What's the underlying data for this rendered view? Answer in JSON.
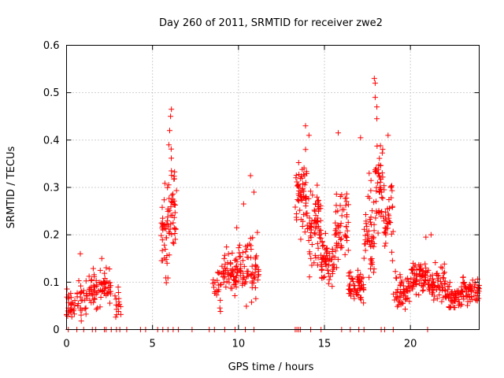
{
  "chart_data": {
    "type": "scatter",
    "title": "Day 260 of 2011, SRMTID for receiver zwe2",
    "xlabel": "GPS time / hours",
    "ylabel": "SRMTID / TECUs",
    "xlim": [
      0,
      24
    ],
    "ylim": [
      0,
      0.6
    ],
    "xticks": [
      0,
      5,
      10,
      15,
      20
    ],
    "yticks": [
      0,
      0.1,
      0.2,
      0.3,
      0.4,
      0.5,
      0.6
    ],
    "xtick_labels": [
      "0",
      "5",
      "10",
      "15",
      "20"
    ],
    "ytick_labels": [
      "0",
      "0.1",
      "0.2",
      "0.3",
      "0.4",
      "0.5",
      "0.6"
    ],
    "grid": true,
    "marker": "+",
    "marker_color": "#ff0000",
    "clusters": [
      {
        "x_range": [
          0.0,
          0.5
        ],
        "y_center": 0.05,
        "y_spread": 0.03,
        "count": 30
      },
      {
        "x_range": [
          0.6,
          1.2
        ],
        "y_center": 0.06,
        "y_spread": 0.04,
        "count": 30
      },
      {
        "x_range": [
          1.3,
          2.0
        ],
        "y_center": 0.08,
        "y_spread": 0.035,
        "count": 40
      },
      {
        "x_range": [
          2.0,
          2.6
        ],
        "y_center": 0.09,
        "y_spread": 0.03,
        "count": 35
      },
      {
        "x_range": [
          2.8,
          3.2
        ],
        "y_center": 0.05,
        "y_spread": 0.03,
        "count": 15
      },
      {
        "x_range": [
          5.5,
          6.0
        ],
        "y_center": 0.2,
        "y_spread": 0.09,
        "count": 45
      },
      {
        "x_range": [
          6.0,
          6.4
        ],
        "y_center": 0.28,
        "y_spread": 0.1,
        "count": 35
      },
      {
        "x_range": [
          8.5,
          9.0
        ],
        "y_center": 0.09,
        "y_spread": 0.04,
        "count": 20
      },
      {
        "x_range": [
          9.0,
          10.0
        ],
        "y_center": 0.12,
        "y_spread": 0.04,
        "count": 60
      },
      {
        "x_range": [
          10.0,
          11.2
        ],
        "y_center": 0.13,
        "y_spread": 0.06,
        "count": 70
      },
      {
        "x_range": [
          13.3,
          14.0
        ],
        "y_center": 0.28,
        "y_spread": 0.07,
        "count": 60
      },
      {
        "x_range": [
          14.0,
          14.8
        ],
        "y_center": 0.22,
        "y_spread": 0.08,
        "count": 70
      },
      {
        "x_range": [
          14.8,
          15.6
        ],
        "y_center": 0.15,
        "y_spread": 0.05,
        "count": 60
      },
      {
        "x_range": [
          15.6,
          16.4
        ],
        "y_center": 0.22,
        "y_spread": 0.07,
        "count": 55
      },
      {
        "x_range": [
          16.4,
          17.3
        ],
        "y_center": 0.09,
        "y_spread": 0.03,
        "count": 60
      },
      {
        "x_range": [
          17.3,
          17.9
        ],
        "y_center": 0.2,
        "y_spread": 0.08,
        "count": 50
      },
      {
        "x_range": [
          17.9,
          18.4
        ],
        "y_center": 0.3,
        "y_spread": 0.09,
        "count": 45
      },
      {
        "x_range": [
          18.4,
          19.0
        ],
        "y_center": 0.22,
        "y_spread": 0.08,
        "count": 40
      },
      {
        "x_range": [
          19.0,
          20.0
        ],
        "y_center": 0.08,
        "y_spread": 0.03,
        "count": 55
      },
      {
        "x_range": [
          20.0,
          21.0
        ],
        "y_center": 0.11,
        "y_spread": 0.03,
        "count": 70
      },
      {
        "x_range": [
          21.0,
          22.0
        ],
        "y_center": 0.1,
        "y_spread": 0.035,
        "count": 60
      },
      {
        "x_range": [
          22.0,
          23.0
        ],
        "y_center": 0.07,
        "y_spread": 0.025,
        "count": 60
      },
      {
        "x_range": [
          23.0,
          24.0
        ],
        "y_center": 0.08,
        "y_spread": 0.03,
        "count": 60
      }
    ],
    "outliers": [
      {
        "x": 6.1,
        "y": 0.465
      },
      {
        "x": 6.05,
        "y": 0.45
      },
      {
        "x": 6.0,
        "y": 0.42
      },
      {
        "x": 5.95,
        "y": 0.39
      },
      {
        "x": 10.7,
        "y": 0.325
      },
      {
        "x": 10.9,
        "y": 0.29
      },
      {
        "x": 13.9,
        "y": 0.43
      },
      {
        "x": 14.1,
        "y": 0.41
      },
      {
        "x": 15.8,
        "y": 0.415
      },
      {
        "x": 17.1,
        "y": 0.405
      },
      {
        "x": 17.6,
        "y": 0.33
      },
      {
        "x": 17.9,
        "y": 0.53
      },
      {
        "x": 17.95,
        "y": 0.52
      },
      {
        "x": 17.95,
        "y": 0.49
      },
      {
        "x": 18.05,
        "y": 0.47
      },
      {
        "x": 18.05,
        "y": 0.445
      },
      {
        "x": 18.7,
        "y": 0.41
      },
      {
        "x": 0.8,
        "y": 0.16
      },
      {
        "x": 2.05,
        "y": 0.15
      },
      {
        "x": 20.9,
        "y": 0.195
      },
      {
        "x": 21.2,
        "y": 0.2
      },
      {
        "x": 9.9,
        "y": 0.215
      },
      {
        "x": 11.1,
        "y": 0.205
      },
      {
        "x": 10.3,
        "y": 0.265
      }
    ],
    "baseline_x": [
      0.1,
      0.6,
      1.0,
      1.5,
      1.7,
      2.2,
      2.3,
      2.6,
      2.9,
      3.1,
      3.5,
      4.3,
      4.6,
      5.3,
      5.6,
      5.9,
      6.2,
      6.5,
      7.3,
      8.3,
      8.6,
      9.2,
      9.8,
      10.4,
      10.9,
      13.3,
      13.4,
      13.5,
      13.6,
      14.2,
      14.8,
      16.0,
      16.5,
      17.0,
      17.3,
      18.3,
      18.5,
      19.0,
      21.0
    ]
  }
}
